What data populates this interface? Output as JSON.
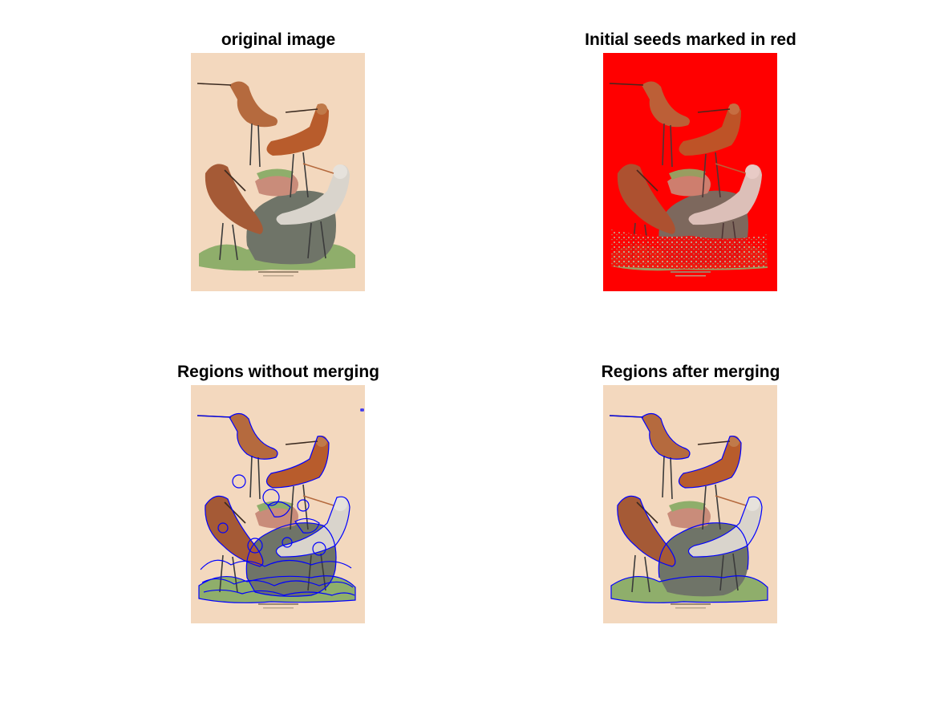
{
  "panels": [
    {
      "id": "original",
      "title": "original image",
      "overlay": "none"
    },
    {
      "id": "seeds",
      "title": "Initial seeds marked in red",
      "overlay": "red-seeds"
    },
    {
      "id": "no-merge",
      "title": "Regions without merging",
      "overlay": "blue-fine"
    },
    {
      "id": "merged",
      "title": "Regions after merging",
      "overlay": "blue-coarse"
    }
  ],
  "colors": {
    "paper": "#f3d8be",
    "seed_red": "#ff0000",
    "region_blue": "#0000ff",
    "ground_green": "#8fae6b",
    "rock_gray": "#6f7468",
    "bird_brown": "#b56a3e",
    "bird_white": "#d9d4cc"
  },
  "icons": {
    "bird": "bird-illustration"
  }
}
